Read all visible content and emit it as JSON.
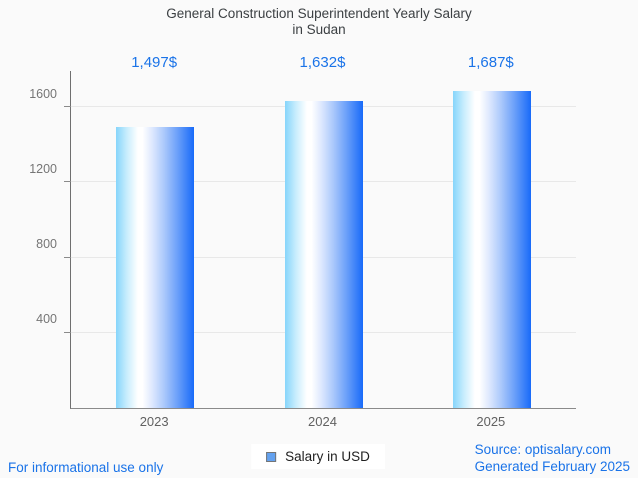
{
  "title": {
    "line1": "General Construction Superintendent Yearly Salary",
    "line2": "in Sudan"
  },
  "chart_data": {
    "type": "bar",
    "title": "General Construction Superintendent Yearly Salary in Sudan",
    "categories": [
      "2023",
      "2024",
      "2025"
    ],
    "values": [
      1497,
      1632,
      1687
    ],
    "value_labels": [
      "1,497$",
      "1,632$",
      "1,687$"
    ],
    "series_name": "Salary in USD",
    "xlabel": "",
    "ylabel": "",
    "yticks": [
      400,
      800,
      1200,
      1600
    ],
    "ylim": [
      0,
      1792
    ],
    "grid": true,
    "legend_position": "bottom-center",
    "bar_gradient": [
      "#86d5fb",
      "#ffffff",
      "#186af9"
    ]
  },
  "legend": {
    "label": "Salary in USD",
    "marker_color": "#64a2f0"
  },
  "footer": {
    "left": "For informational use only",
    "source": "Source: optisalary.com",
    "generated": "Generated February 2025"
  },
  "colors": {
    "background": "#fafafa",
    "title_text": "#3c4043",
    "accent_text": "#1a73e8",
    "axis_text": "#757575",
    "gridline": "#e8e8e8"
  }
}
